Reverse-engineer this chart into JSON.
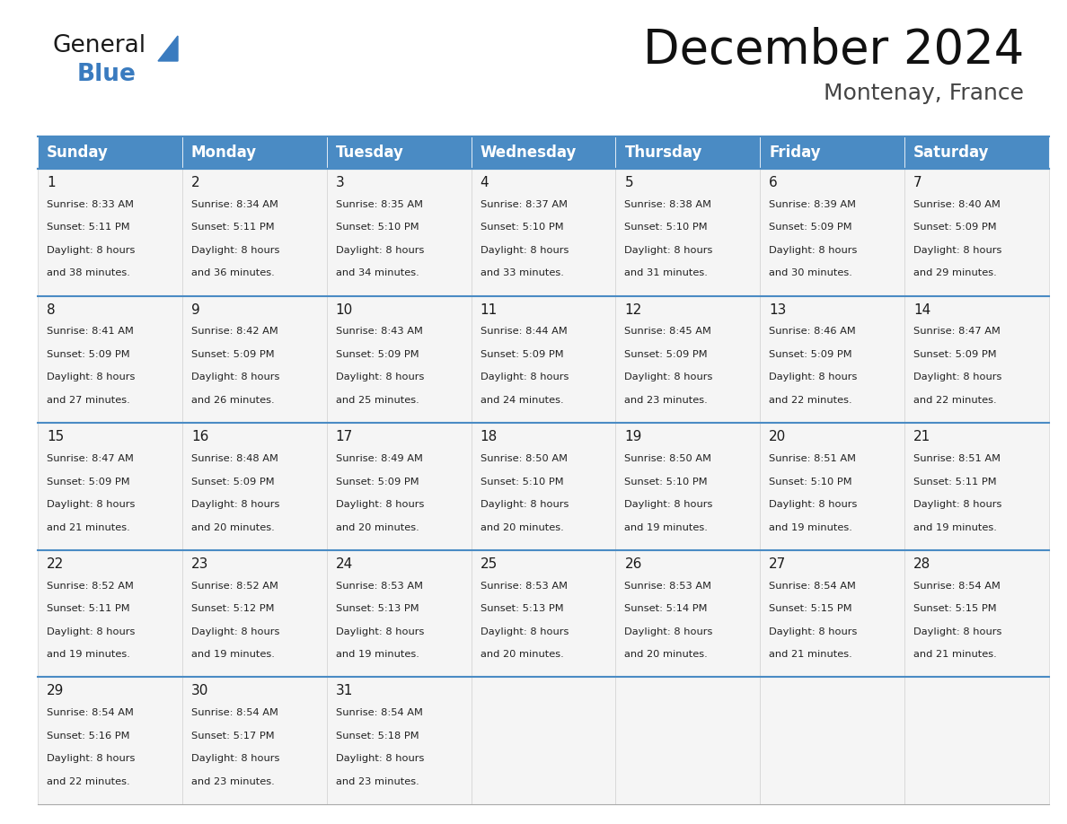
{
  "title": "December 2024",
  "subtitle": "Montenay, France",
  "header_bg_color": "#4a8bc4",
  "header_text_color": "#ffffff",
  "border_color": "#4a8bc4",
  "row_border_color": "#4a8bc4",
  "cell_border_color": "#cccccc",
  "cell_bg_color": "#f5f5f5",
  "day_names": [
    "Sunday",
    "Monday",
    "Tuesday",
    "Wednesday",
    "Thursday",
    "Friday",
    "Saturday"
  ],
  "days": [
    {
      "day": 1,
      "col": 0,
      "row": 0,
      "sunrise": "8:33 AM",
      "sunset": "5:11 PM",
      "daylight_h": "8 hours",
      "daylight_m": "38 minutes."
    },
    {
      "day": 2,
      "col": 1,
      "row": 0,
      "sunrise": "8:34 AM",
      "sunset": "5:11 PM",
      "daylight_h": "8 hours",
      "daylight_m": "36 minutes."
    },
    {
      "day": 3,
      "col": 2,
      "row": 0,
      "sunrise": "8:35 AM",
      "sunset": "5:10 PM",
      "daylight_h": "8 hours",
      "daylight_m": "34 minutes."
    },
    {
      "day": 4,
      "col": 3,
      "row": 0,
      "sunrise": "8:37 AM",
      "sunset": "5:10 PM",
      "daylight_h": "8 hours",
      "daylight_m": "33 minutes."
    },
    {
      "day": 5,
      "col": 4,
      "row": 0,
      "sunrise": "8:38 AM",
      "sunset": "5:10 PM",
      "daylight_h": "8 hours",
      "daylight_m": "31 minutes."
    },
    {
      "day": 6,
      "col": 5,
      "row": 0,
      "sunrise": "8:39 AM",
      "sunset": "5:09 PM",
      "daylight_h": "8 hours",
      "daylight_m": "30 minutes."
    },
    {
      "day": 7,
      "col": 6,
      "row": 0,
      "sunrise": "8:40 AM",
      "sunset": "5:09 PM",
      "daylight_h": "8 hours",
      "daylight_m": "29 minutes."
    },
    {
      "day": 8,
      "col": 0,
      "row": 1,
      "sunrise": "8:41 AM",
      "sunset": "5:09 PM",
      "daylight_h": "8 hours",
      "daylight_m": "27 minutes."
    },
    {
      "day": 9,
      "col": 1,
      "row": 1,
      "sunrise": "8:42 AM",
      "sunset": "5:09 PM",
      "daylight_h": "8 hours",
      "daylight_m": "26 minutes."
    },
    {
      "day": 10,
      "col": 2,
      "row": 1,
      "sunrise": "8:43 AM",
      "sunset": "5:09 PM",
      "daylight_h": "8 hours",
      "daylight_m": "25 minutes."
    },
    {
      "day": 11,
      "col": 3,
      "row": 1,
      "sunrise": "8:44 AM",
      "sunset": "5:09 PM",
      "daylight_h": "8 hours",
      "daylight_m": "24 minutes."
    },
    {
      "day": 12,
      "col": 4,
      "row": 1,
      "sunrise": "8:45 AM",
      "sunset": "5:09 PM",
      "daylight_h": "8 hours",
      "daylight_m": "23 minutes."
    },
    {
      "day": 13,
      "col": 5,
      "row": 1,
      "sunrise": "8:46 AM",
      "sunset": "5:09 PM",
      "daylight_h": "8 hours",
      "daylight_m": "22 minutes."
    },
    {
      "day": 14,
      "col": 6,
      "row": 1,
      "sunrise": "8:47 AM",
      "sunset": "5:09 PM",
      "daylight_h": "8 hours",
      "daylight_m": "22 minutes."
    },
    {
      "day": 15,
      "col": 0,
      "row": 2,
      "sunrise": "8:47 AM",
      "sunset": "5:09 PM",
      "daylight_h": "8 hours",
      "daylight_m": "21 minutes."
    },
    {
      "day": 16,
      "col": 1,
      "row": 2,
      "sunrise": "8:48 AM",
      "sunset": "5:09 PM",
      "daylight_h": "8 hours",
      "daylight_m": "20 minutes."
    },
    {
      "day": 17,
      "col": 2,
      "row": 2,
      "sunrise": "8:49 AM",
      "sunset": "5:09 PM",
      "daylight_h": "8 hours",
      "daylight_m": "20 minutes."
    },
    {
      "day": 18,
      "col": 3,
      "row": 2,
      "sunrise": "8:50 AM",
      "sunset": "5:10 PM",
      "daylight_h": "8 hours",
      "daylight_m": "20 minutes."
    },
    {
      "day": 19,
      "col": 4,
      "row": 2,
      "sunrise": "8:50 AM",
      "sunset": "5:10 PM",
      "daylight_h": "8 hours",
      "daylight_m": "19 minutes."
    },
    {
      "day": 20,
      "col": 5,
      "row": 2,
      "sunrise": "8:51 AM",
      "sunset": "5:10 PM",
      "daylight_h": "8 hours",
      "daylight_m": "19 minutes."
    },
    {
      "day": 21,
      "col": 6,
      "row": 2,
      "sunrise": "8:51 AM",
      "sunset": "5:11 PM",
      "daylight_h": "8 hours",
      "daylight_m": "19 minutes."
    },
    {
      "day": 22,
      "col": 0,
      "row": 3,
      "sunrise": "8:52 AM",
      "sunset": "5:11 PM",
      "daylight_h": "8 hours",
      "daylight_m": "19 minutes."
    },
    {
      "day": 23,
      "col": 1,
      "row": 3,
      "sunrise": "8:52 AM",
      "sunset": "5:12 PM",
      "daylight_h": "8 hours",
      "daylight_m": "19 minutes."
    },
    {
      "day": 24,
      "col": 2,
      "row": 3,
      "sunrise": "8:53 AM",
      "sunset": "5:13 PM",
      "daylight_h": "8 hours",
      "daylight_m": "19 minutes."
    },
    {
      "day": 25,
      "col": 3,
      "row": 3,
      "sunrise": "8:53 AM",
      "sunset": "5:13 PM",
      "daylight_h": "8 hours",
      "daylight_m": "20 minutes."
    },
    {
      "day": 26,
      "col": 4,
      "row": 3,
      "sunrise": "8:53 AM",
      "sunset": "5:14 PM",
      "daylight_h": "8 hours",
      "daylight_m": "20 minutes."
    },
    {
      "day": 27,
      "col": 5,
      "row": 3,
      "sunrise": "8:54 AM",
      "sunset": "5:15 PM",
      "daylight_h": "8 hours",
      "daylight_m": "21 minutes."
    },
    {
      "day": 28,
      "col": 6,
      "row": 3,
      "sunrise": "8:54 AM",
      "sunset": "5:15 PM",
      "daylight_h": "8 hours",
      "daylight_m": "21 minutes."
    },
    {
      "day": 29,
      "col": 0,
      "row": 4,
      "sunrise": "8:54 AM",
      "sunset": "5:16 PM",
      "daylight_h": "8 hours",
      "daylight_m": "22 minutes."
    },
    {
      "day": 30,
      "col": 1,
      "row": 4,
      "sunrise": "8:54 AM",
      "sunset": "5:17 PM",
      "daylight_h": "8 hours",
      "daylight_m": "23 minutes."
    },
    {
      "day": 31,
      "col": 2,
      "row": 4,
      "sunrise": "8:54 AM",
      "sunset": "5:18 PM",
      "daylight_h": "8 hours",
      "daylight_m": "23 minutes."
    }
  ],
  "num_rows": 5,
  "num_cols": 7
}
